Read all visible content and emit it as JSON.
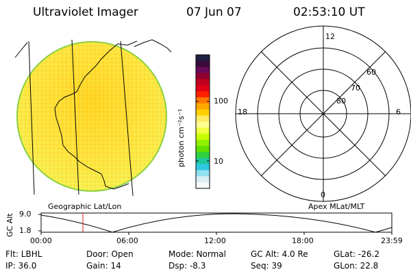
{
  "header": {
    "instrument": "Ultraviolet Imager",
    "date": "07 Jun 07",
    "time": "02:53:10 UT"
  },
  "image_panel": {
    "caption": "Geographic Lat/Lon"
  },
  "colorbar": {
    "unit_label": "photon cm⁻²s⁻¹",
    "ticks": [
      "100",
      "10"
    ],
    "colors": [
      "#202040",
      "#3a0a3a",
      "#6a0a5a",
      "#900030",
      "#c00020",
      "#e00018",
      "#ff2000",
      "#ff7800",
      "#ffa800",
      "#ffd000",
      "#ffea60",
      "#ffff90",
      "#f0ff40",
      "#c8ff00",
      "#90f000",
      "#60e000",
      "#30d040",
      "#20c8a0",
      "#30c8e0",
      "#90e0f0",
      "#d8eef4",
      "#f4f8fa"
    ]
  },
  "polar_panel": {
    "caption": "Apex MLat/MLT",
    "mlt_labels": {
      "top": "12",
      "left": "18",
      "right": "6",
      "bottom": "0"
    },
    "lat_labels": [
      "60",
      "70",
      "80"
    ]
  },
  "altitude_plot": {
    "ylabel": "GC Alt",
    "yticks": [
      "9.0",
      "1.8"
    ],
    "xticks": [
      "00:00",
      "06:00",
      "12:00",
      "18:00",
      "23:59"
    ]
  },
  "info": {
    "filter": "Flt: LBHL",
    "ip": "IP: 36.0",
    "door": "Door: Open",
    "gain": "Gain: 14",
    "mode": "Mode: Normal",
    "dsp": "Dsp:   -8.3",
    "gc_alt": "GC Alt: 4.0 Re",
    "seq": "Seq: 39",
    "glat": "GLat: -26.2",
    "glon": "GLon:  22.8"
  }
}
